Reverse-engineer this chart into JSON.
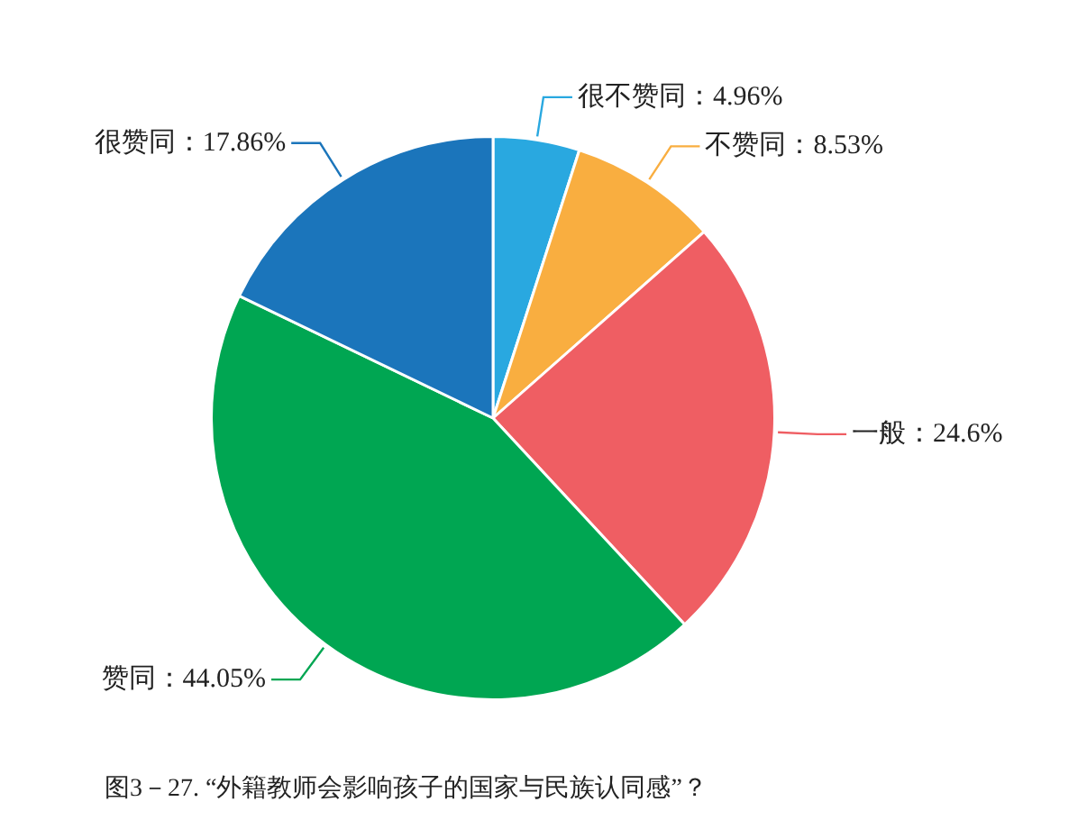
{
  "chart_data": {
    "type": "pie",
    "title": "图3－27. “外籍教师会影响孩子的国家与民族认同感”？",
    "categories": [
      "很不赞同",
      "不赞同",
      "一般",
      "赞同",
      "很赞同"
    ],
    "values": [
      4.96,
      8.53,
      24.6,
      44.05,
      17.86
    ],
    "colors": [
      "#29a8e0",
      "#f9ae40",
      "#ef5e63",
      "#00a652",
      "#1b75bb"
    ],
    "value_labels": [
      "：4.96%",
      "：8.53%",
      "：24.6%",
      "：44.05%",
      "：17.86%"
    ],
    "legend": false
  }
}
